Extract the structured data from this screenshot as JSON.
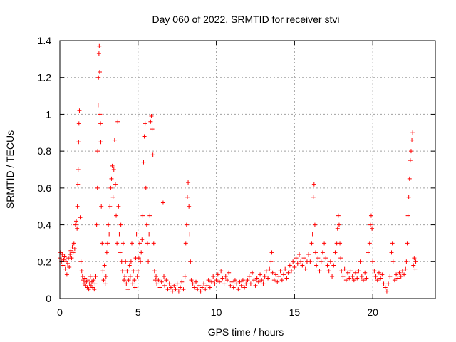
{
  "chart_data": {
    "type": "scatter",
    "title": "Day 060 of 2022, SRMTID for receiver stvi",
    "xlabel": "GPS time / hours",
    "ylabel": "SRMTID / TECUs",
    "xlim": [
      0,
      24
    ],
    "ylim": [
      0,
      1.4
    ],
    "xticks": [
      0,
      5,
      10,
      15,
      20
    ],
    "xtick_labels": [
      "0",
      "5",
      "10",
      "15",
      "20"
    ],
    "yticks": [
      0,
      0.2,
      0.4,
      0.6,
      0.8,
      1,
      1.2,
      1.4
    ],
    "ytick_labels": [
      "0",
      "0.2",
      "0.4",
      "0.6",
      "0.8",
      "1",
      "1.2",
      "1.4"
    ],
    "grid": true,
    "marker": "+",
    "color": "#ff0000",
    "series": [
      {
        "name": "SRMTID",
        "points": [
          [
            0.0,
            0.22
          ],
          [
            0.05,
            0.25
          ],
          [
            0.1,
            0.2
          ],
          [
            0.15,
            0.24
          ],
          [
            0.2,
            0.18
          ],
          [
            0.25,
            0.21
          ],
          [
            0.3,
            0.23
          ],
          [
            0.35,
            0.16
          ],
          [
            0.4,
            0.2
          ],
          [
            0.45,
            0.13
          ],
          [
            0.5,
            0.19
          ],
          [
            0.55,
            0.22
          ],
          [
            0.6,
            0.17
          ],
          [
            0.65,
            0.24
          ],
          [
            0.7,
            0.26
          ],
          [
            0.75,
            0.22
          ],
          [
            0.8,
            0.28
          ],
          [
            0.85,
            0.25
          ],
          [
            0.9,
            0.3
          ],
          [
            0.95,
            0.27
          ],
          [
            1.0,
            0.4
          ],
          [
            1.05,
            0.42
          ],
          [
            1.1,
            0.38
          ],
          [
            1.12,
            0.5
          ],
          [
            1.15,
            0.62
          ],
          [
            1.17,
            0.7
          ],
          [
            1.2,
            0.85
          ],
          [
            1.22,
            0.95
          ],
          [
            1.25,
            1.02
          ],
          [
            1.3,
            0.44
          ],
          [
            1.35,
            0.2
          ],
          [
            1.4,
            0.15
          ],
          [
            1.45,
            0.12
          ],
          [
            1.5,
            0.1
          ],
          [
            1.55,
            0.08
          ],
          [
            1.6,
            0.11
          ],
          [
            1.65,
            0.07
          ],
          [
            1.7,
            0.09
          ],
          [
            1.75,
            0.06
          ],
          [
            1.8,
            0.1
          ],
          [
            1.85,
            0.05
          ],
          [
            1.9,
            0.08
          ],
          [
            1.95,
            0.12
          ],
          [
            2.0,
            0.07
          ],
          [
            2.05,
            0.09
          ],
          [
            2.1,
            0.06
          ],
          [
            2.15,
            0.1
          ],
          [
            2.2,
            0.05
          ],
          [
            2.25,
            0.08
          ],
          [
            2.3,
            0.12
          ],
          [
            2.35,
            0.4
          ],
          [
            2.4,
            0.6
          ],
          [
            2.42,
            0.8
          ],
          [
            2.45,
            1.05
          ],
          [
            2.47,
            1.2
          ],
          [
            2.5,
            1.33
          ],
          [
            2.52,
            1.37
          ],
          [
            2.55,
            1.23
          ],
          [
            2.57,
            1.0
          ],
          [
            2.6,
            0.95
          ],
          [
            2.62,
            0.85
          ],
          [
            2.65,
            0.5
          ],
          [
            2.7,
            0.3
          ],
          [
            2.75,
            0.15
          ],
          [
            2.8,
            0.1
          ],
          [
            2.85,
            0.18
          ],
          [
            2.9,
            0.08
          ],
          [
            2.95,
            0.12
          ],
          [
            3.0,
            0.25
          ],
          [
            3.05,
            0.3
          ],
          [
            3.1,
            0.4
          ],
          [
            3.15,
            0.35
          ],
          [
            3.2,
            0.5
          ],
          [
            3.25,
            0.6
          ],
          [
            3.3,
            0.65
          ],
          [
            3.35,
            0.72
          ],
          [
            3.4,
            0.55
          ],
          [
            3.45,
            0.7
          ],
          [
            3.5,
            0.86
          ],
          [
            3.55,
            0.62
          ],
          [
            3.6,
            0.45
          ],
          [
            3.65,
            0.3
          ],
          [
            3.7,
            0.96
          ],
          [
            3.75,
            0.5
          ],
          [
            3.8,
            0.35
          ],
          [
            3.85,
            0.25
          ],
          [
            3.9,
            0.4
          ],
          [
            3.95,
            0.2
          ],
          [
            4.0,
            0.15
          ],
          [
            4.05,
            0.3
          ],
          [
            4.1,
            0.1
          ],
          [
            4.15,
            0.12
          ],
          [
            4.2,
            0.2
          ],
          [
            4.25,
            0.08
          ],
          [
            4.3,
            0.15
          ],
          [
            4.35,
            0.05
          ],
          [
            4.4,
            0.1
          ],
          [
            4.45,
            0.18
          ],
          [
            4.5,
            0.12
          ],
          [
            4.55,
            0.2
          ],
          [
            4.6,
            0.3
          ],
          [
            4.65,
            0.08
          ],
          [
            4.7,
            0.15
          ],
          [
            4.75,
            0.1
          ],
          [
            4.8,
            0.06
          ],
          [
            4.85,
            0.22
          ],
          [
            4.9,
            0.35
          ],
          [
            4.95,
            0.12
          ],
          [
            5.0,
            0.15
          ],
          [
            5.05,
            0.22
          ],
          [
            5.1,
            0.3
          ],
          [
            5.15,
            0.2
          ],
          [
            5.2,
            0.25
          ],
          [
            5.25,
            0.32
          ],
          [
            5.3,
            0.45
          ],
          [
            5.35,
            0.74
          ],
          [
            5.4,
            0.88
          ],
          [
            5.45,
            0.95
          ],
          [
            5.5,
            0.6
          ],
          [
            5.55,
            0.4
          ],
          [
            5.6,
            0.3
          ],
          [
            5.65,
            0.2
          ],
          [
            5.7,
            0.35
          ],
          [
            5.75,
            0.45
          ],
          [
            5.8,
            0.96
          ],
          [
            5.85,
            0.99
          ],
          [
            5.9,
            0.92
          ],
          [
            5.95,
            0.78
          ],
          [
            6.0,
            0.3
          ],
          [
            6.05,
            0.15
          ],
          [
            6.1,
            0.1
          ],
          [
            6.15,
            0.12
          ],
          [
            6.2,
            0.08
          ],
          [
            6.3,
            0.1
          ],
          [
            6.4,
            0.06
          ],
          [
            6.5,
            0.09
          ],
          [
            6.6,
            0.52
          ],
          [
            6.65,
            0.12
          ],
          [
            6.7,
            0.07
          ],
          [
            6.8,
            0.1
          ],
          [
            6.9,
            0.05
          ],
          [
            7.0,
            0.08
          ],
          [
            7.1,
            0.06
          ],
          [
            7.2,
            0.04
          ],
          [
            7.3,
            0.07
          ],
          [
            7.4,
            0.05
          ],
          [
            7.5,
            0.08
          ],
          [
            7.6,
            0.04
          ],
          [
            7.7,
            0.06
          ],
          [
            7.8,
            0.09
          ],
          [
            7.9,
            0.05
          ],
          [
            8.0,
            0.12
          ],
          [
            8.05,
            0.3
          ],
          [
            8.1,
            0.4
          ],
          [
            8.15,
            0.55
          ],
          [
            8.2,
            0.63
          ],
          [
            8.25,
            0.5
          ],
          [
            8.3,
            0.35
          ],
          [
            8.35,
            0.2
          ],
          [
            8.4,
            0.1
          ],
          [
            8.5,
            0.08
          ],
          [
            8.6,
            0.06
          ],
          [
            8.7,
            0.09
          ],
          [
            8.8,
            0.05
          ],
          [
            8.9,
            0.07
          ],
          [
            9.0,
            0.04
          ],
          [
            9.1,
            0.06
          ],
          [
            9.2,
            0.08
          ],
          [
            9.3,
            0.05
          ],
          [
            9.4,
            0.07
          ],
          [
            9.5,
            0.1
          ],
          [
            9.6,
            0.06
          ],
          [
            9.7,
            0.09
          ],
          [
            9.8,
            0.12
          ],
          [
            9.9,
            0.08
          ],
          [
            10.0,
            0.1
          ],
          [
            10.1,
            0.13
          ],
          [
            10.2,
            0.09
          ],
          [
            10.3,
            0.15
          ],
          [
            10.4,
            0.11
          ],
          [
            10.5,
            0.08
          ],
          [
            10.6,
            0.12
          ],
          [
            10.7,
            0.1
          ],
          [
            10.8,
            0.14
          ],
          [
            10.9,
            0.07
          ],
          [
            11.0,
            0.09
          ],
          [
            11.1,
            0.06
          ],
          [
            11.2,
            0.1
          ],
          [
            11.3,
            0.08
          ],
          [
            11.4,
            0.05
          ],
          [
            11.5,
            0.09
          ],
          [
            11.6,
            0.07
          ],
          [
            11.7,
            0.1
          ],
          [
            11.8,
            0.06
          ],
          [
            11.9,
            0.08
          ],
          [
            12.0,
            0.1
          ],
          [
            12.1,
            0.12
          ],
          [
            12.2,
            0.08
          ],
          [
            12.3,
            0.14
          ],
          [
            12.4,
            0.1
          ],
          [
            12.5,
            0.07
          ],
          [
            12.6,
            0.11
          ],
          [
            12.7,
            0.09
          ],
          [
            12.8,
            0.13
          ],
          [
            12.9,
            0.1
          ],
          [
            13.0,
            0.08
          ],
          [
            13.1,
            0.12
          ],
          [
            13.2,
            0.15
          ],
          [
            13.3,
            0.11
          ],
          [
            13.4,
            0.16
          ],
          [
            13.5,
            0.2
          ],
          [
            13.55,
            0.25
          ],
          [
            13.6,
            0.14
          ],
          [
            13.7,
            0.1
          ],
          [
            13.8,
            0.13
          ],
          [
            13.9,
            0.09
          ],
          [
            14.0,
            0.12
          ],
          [
            14.1,
            0.15
          ],
          [
            14.2,
            0.1
          ],
          [
            14.3,
            0.13
          ],
          [
            14.4,
            0.16
          ],
          [
            14.5,
            0.11
          ],
          [
            14.6,
            0.14
          ],
          [
            14.7,
            0.18
          ],
          [
            14.8,
            0.15
          ],
          [
            14.9,
            0.2
          ],
          [
            15.0,
            0.17
          ],
          [
            15.1,
            0.22
          ],
          [
            15.2,
            0.19
          ],
          [
            15.3,
            0.24
          ],
          [
            15.4,
            0.2
          ],
          [
            15.5,
            0.18
          ],
          [
            15.6,
            0.22
          ],
          [
            15.7,
            0.16
          ],
          [
            15.8,
            0.2
          ],
          [
            15.9,
            0.24
          ],
          [
            16.0,
            0.2
          ],
          [
            16.1,
            0.3
          ],
          [
            16.15,
            0.35
          ],
          [
            16.2,
            0.55
          ],
          [
            16.25,
            0.62
          ],
          [
            16.3,
            0.4
          ],
          [
            16.35,
            0.25
          ],
          [
            16.4,
            0.18
          ],
          [
            16.5,
            0.22
          ],
          [
            16.6,
            0.15
          ],
          [
            16.7,
            0.2
          ],
          [
            16.8,
            0.25
          ],
          [
            16.9,
            0.3
          ],
          [
            17.0,
            0.22
          ],
          [
            17.1,
            0.18
          ],
          [
            17.2,
            0.15
          ],
          [
            17.3,
            0.2
          ],
          [
            17.4,
            0.12
          ],
          [
            17.5,
            0.18
          ],
          [
            17.6,
            0.25
          ],
          [
            17.7,
            0.3
          ],
          [
            17.75,
            0.38
          ],
          [
            17.8,
            0.45
          ],
          [
            17.85,
            0.4
          ],
          [
            17.9,
            0.3
          ],
          [
            17.95,
            0.22
          ],
          [
            18.0,
            0.15
          ],
          [
            18.1,
            0.12
          ],
          [
            18.2,
            0.16
          ],
          [
            18.3,
            0.1
          ],
          [
            18.4,
            0.14
          ],
          [
            18.5,
            0.11
          ],
          [
            18.6,
            0.15
          ],
          [
            18.7,
            0.12
          ],
          [
            18.8,
            0.1
          ],
          [
            18.9,
            0.14
          ],
          [
            19.0,
            0.11
          ],
          [
            19.1,
            0.15
          ],
          [
            19.2,
            0.2
          ],
          [
            19.3,
            0.12
          ],
          [
            19.4,
            0.1
          ],
          [
            19.5,
            0.14
          ],
          [
            19.6,
            0.11
          ],
          [
            19.7,
            0.25
          ],
          [
            19.8,
            0.3
          ],
          [
            19.85,
            0.4
          ],
          [
            19.9,
            0.45
          ],
          [
            19.95,
            0.38
          ],
          [
            20.0,
            0.2
          ],
          [
            20.1,
            0.15
          ],
          [
            20.2,
            0.12
          ],
          [
            20.3,
            0.1
          ],
          [
            20.4,
            0.14
          ],
          [
            20.5,
            0.11
          ],
          [
            20.6,
            0.13
          ],
          [
            20.7,
            0.08
          ],
          [
            20.8,
            0.06
          ],
          [
            20.9,
            0.04
          ],
          [
            21.0,
            0.08
          ],
          [
            21.1,
            0.12
          ],
          [
            21.2,
            0.25
          ],
          [
            21.25,
            0.3
          ],
          [
            21.3,
            0.2
          ],
          [
            21.4,
            0.1
          ],
          [
            21.5,
            0.13
          ],
          [
            21.6,
            0.11
          ],
          [
            21.7,
            0.14
          ],
          [
            21.8,
            0.12
          ],
          [
            21.9,
            0.15
          ],
          [
            22.0,
            0.13
          ],
          [
            22.1,
            0.16
          ],
          [
            22.15,
            0.2
          ],
          [
            22.2,
            0.3
          ],
          [
            22.25,
            0.45
          ],
          [
            22.3,
            0.55
          ],
          [
            22.35,
            0.65
          ],
          [
            22.4,
            0.75
          ],
          [
            22.45,
            0.8
          ],
          [
            22.5,
            0.86
          ],
          [
            22.55,
            0.9
          ],
          [
            22.6,
            0.18
          ],
          [
            22.65,
            0.22
          ],
          [
            22.7,
            0.16
          ],
          [
            22.75,
            0.2
          ]
        ]
      }
    ]
  }
}
